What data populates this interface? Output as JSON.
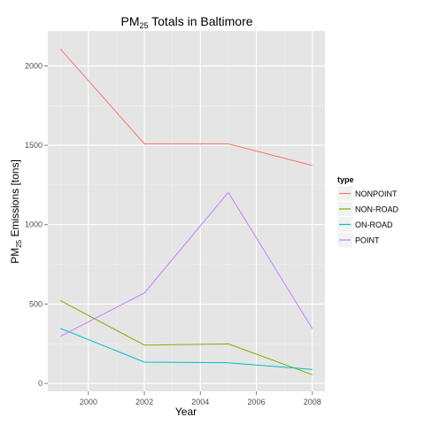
{
  "chart_data": {
    "type": "line",
    "title_main": "PM",
    "title_sub": "25",
    "title_rest": " Totals in Baltimore",
    "xlabel": "Year",
    "ylabel_main": "PM",
    "ylabel_sub": "25",
    "ylabel_rest": " Emissions [tons]",
    "x": [
      1999,
      2002,
      2005,
      2008
    ],
    "xlim": [
      1998.55,
      2008.45
    ],
    "ylim": [
      -50,
      2220
    ],
    "x_ticks": [
      2000,
      2002,
      2004,
      2006,
      2008
    ],
    "y_ticks": [
      0,
      500,
      1000,
      1500,
      2000
    ],
    "grid": true,
    "legend": {
      "title": "type",
      "placement": "right"
    },
    "series": [
      {
        "name": "NONPOINT",
        "color": "#F8766D",
        "values": [
          2107,
          1509,
          1509,
          1373
        ]
      },
      {
        "name": "NON-ROAD",
        "color": "#7CAE00",
        "values": [
          522,
          241,
          249,
          55
        ]
      },
      {
        "name": "ON-ROAD",
        "color": "#00BFC4",
        "values": [
          347,
          134,
          130,
          88
        ]
      },
      {
        "name": "POINT",
        "color": "#C77CFF",
        "values": [
          297,
          570,
          1203,
          345
        ]
      }
    ]
  }
}
